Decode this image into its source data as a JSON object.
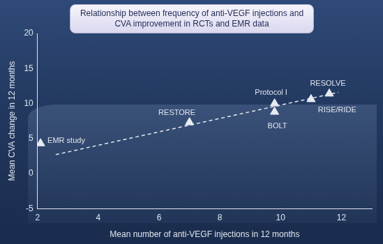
{
  "chart_data": {
    "type": "scatter",
    "title": "Relationship between frequency of anti-VEGF injections and CVA improvement in RCTs and EMR data",
    "x_label": "Mean number of anti-VEGF injections in 12 months",
    "y_label": "Mean CVA change in 12 months",
    "categories": [
      "EMR study",
      "RESTORE",
      "Protocol I",
      "BOLT",
      "RISE/RIDE",
      "RESOLVE"
    ],
    "x": [
      2.1,
      7.0,
      9.8,
      9.8,
      11.0,
      11.6
    ],
    "values": [
      4.3,
      7.3,
      10.0,
      8.8,
      10.6,
      11.4
    ],
    "color": "#e6eaf2",
    "marker": "triangle",
    "trend": {
      "x": [
        2.6,
        11.9
      ],
      "values": [
        2.7,
        11.6
      ],
      "line_style": "dashed",
      "color": "#e6eaf2"
    },
    "xlim": [
      2,
      13
    ],
    "xticks": [
      2,
      4,
      6,
      8,
      10,
      12
    ],
    "ylim": [
      -5,
      20
    ],
    "yticks": [
      -5,
      0,
      5,
      10,
      15,
      20
    ],
    "grid": false
  }
}
